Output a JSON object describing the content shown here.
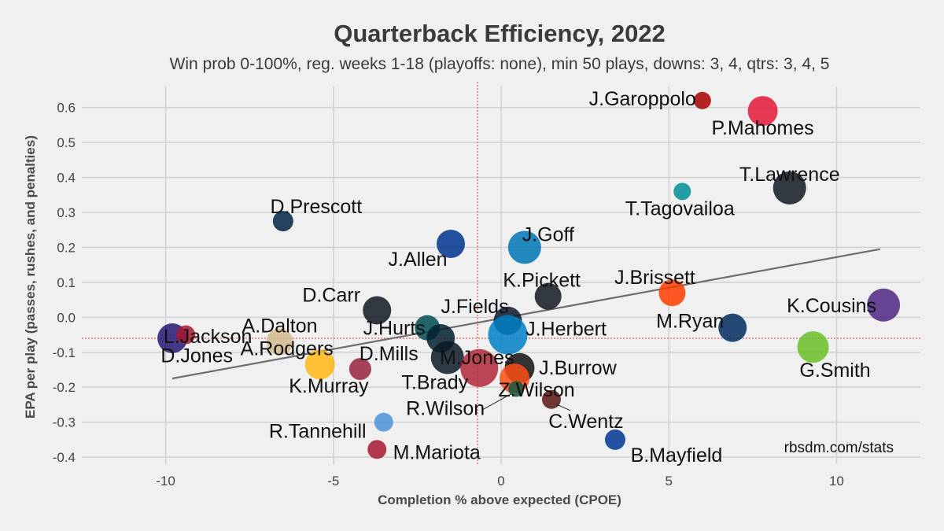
{
  "chart_data": {
    "type": "scatter",
    "title": "Quarterback Efficiency, 2022",
    "subtitle": "Win prob 0-100%, reg. weeks 1-18 (playoffs: none), min 50 plays, downs: 3, 4, qtrs: 3, 4, 5",
    "xlabel": "Completion % above expected (CPOE)",
    "ylabel": "EPA per play (passes, rushes, and penalties)",
    "source": "rbsdm.com/stats",
    "xlim": [
      -12.5,
      12.5
    ],
    "ylim": [
      -0.42,
      0.66
    ],
    "xticks": [
      -10,
      -5,
      0,
      5,
      10
    ],
    "xtick_labels": [
      "-10",
      "-5",
      "0",
      "5",
      "10"
    ],
    "yticks": [
      -0.4,
      -0.3,
      -0.2,
      -0.1,
      0.0,
      0.1,
      0.2,
      0.3,
      0.4,
      0.5,
      0.6
    ],
    "ytick_labels": [
      "-0.4",
      "-0.3",
      "-0.2",
      "-0.1",
      "0.0",
      "0.1",
      "0.2",
      "0.3",
      "0.4",
      "0.5",
      "0.6"
    ],
    "mean_x": -0.7,
    "mean_y": -0.06,
    "trendline": {
      "x": [
        -9.8,
        11.3
      ],
      "y": [
        -0.175,
        0.195
      ]
    },
    "grid": true,
    "legend": "none",
    "points": [
      {
        "name": "J.Garoppolo",
        "x": 6.0,
        "y": 0.62,
        "r": 11,
        "color": "#aa0000"
      },
      {
        "name": "P.Mahomes",
        "x": 7.8,
        "y": 0.59,
        "r": 19,
        "color": "#e31837"
      },
      {
        "name": "T.Lawrence",
        "x": 8.6,
        "y": 0.37,
        "r": 21,
        "color": "#101820"
      },
      {
        "name": "T.Tagovailoa",
        "x": 5.4,
        "y": 0.36,
        "r": 11,
        "color": "#008e97"
      },
      {
        "name": "D.Prescott",
        "x": -6.5,
        "y": 0.275,
        "r": 13,
        "color": "#002244"
      },
      {
        "name": "J.Allen",
        "x": -1.5,
        "y": 0.21,
        "r": 18,
        "color": "#00338d"
      },
      {
        "name": "J.Goff",
        "x": 0.7,
        "y": 0.2,
        "r": 21,
        "color": "#0076b6"
      },
      {
        "name": "K.Pickett",
        "x": 1.4,
        "y": 0.06,
        "r": 17,
        "color": "#101820"
      },
      {
        "name": "J.Brissett",
        "x": 5.1,
        "y": 0.07,
        "r": 17,
        "color": "#ff3c00"
      },
      {
        "name": "K.Cousins",
        "x": 11.4,
        "y": 0.035,
        "r": 21,
        "color": "#4f2683"
      },
      {
        "name": "D.Carr",
        "x": -3.7,
        "y": 0.02,
        "r": 18,
        "color": "#101820"
      },
      {
        "name": "J.Fields",
        "x": 0.2,
        "y": -0.01,
        "r": 18,
        "color": "#0b162a"
      },
      {
        "name": "J.Hurts",
        "x": -2.2,
        "y": -0.03,
        "r": 16,
        "color": "#004c54"
      },
      {
        "name": "J.Herbert",
        "x": 0.2,
        "y": -0.05,
        "r": 25,
        "color": "#0080c6"
      },
      {
        "name": "M.Ryan",
        "x": 6.9,
        "y": -0.03,
        "r": 18,
        "color": "#002c5f"
      },
      {
        "name": "L.Jackson",
        "x": -9.8,
        "y": -0.06,
        "r": 19,
        "color": "#241773"
      },
      {
        "name": "D.Jones",
        "x": -9.4,
        "y": -0.05,
        "r": 12,
        "color": "#a71930"
      },
      {
        "name": "A.Dalton",
        "x": -6.6,
        "y": -0.07,
        "r": 17,
        "color": "#d3bc8d"
      },
      {
        "name": "G.Smith",
        "x": 9.3,
        "y": -0.085,
        "r": 20,
        "color": "#69be28"
      },
      {
        "name": "D.Mills",
        "x": -1.8,
        "y": -0.06,
        "r": 18,
        "color": "#03202f"
      },
      {
        "name": "T.Brady",
        "x": -1.6,
        "y": -0.115,
        "r": 21,
        "color": "#0a1a24"
      },
      {
        "name": "M.Jones",
        "x": -0.65,
        "y": -0.145,
        "r": 24,
        "color": "#b0273a"
      },
      {
        "name": "A.Rodgers",
        "x": -5.4,
        "y": -0.135,
        "r": 19,
        "color": "#ffb612"
      },
      {
        "name": "K.Murray",
        "x": -4.2,
        "y": -0.148,
        "r": 14,
        "color": "#97233f"
      },
      {
        "name": "J.Burrow",
        "x": 0.55,
        "y": -0.145,
        "r": 19,
        "color": "#111111"
      },
      {
        "name": "Z.Wilson",
        "x": 0.4,
        "y": -0.175,
        "r": 19,
        "color": "#fb4f14"
      },
      {
        "name": "R.Wilson",
        "x": 0.45,
        "y": -0.205,
        "r": 10,
        "color": "#125740"
      },
      {
        "name": "C.Wentz",
        "x": 1.5,
        "y": -0.235,
        "r": 12,
        "color": "#5a1414"
      },
      {
        "name": "R.Tannehill",
        "x": -3.5,
        "y": -0.3,
        "r": 12,
        "color": "#4b92db"
      },
      {
        "name": "M.Mariota",
        "x": -3.7,
        "y": -0.378,
        "r": 12,
        "color": "#a71930"
      },
      {
        "name": "B.Mayfield",
        "x": 3.4,
        "y": -0.35,
        "r": 13,
        "color": "#003594"
      }
    ]
  }
}
